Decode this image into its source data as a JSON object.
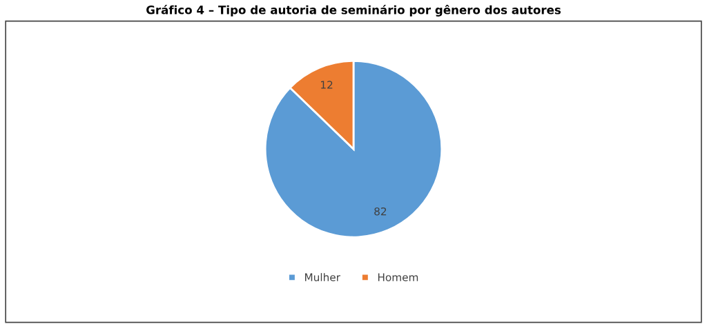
{
  "chart_data": {
    "type": "pie",
    "title": "Gráfico 4 – Tipo de autoria de seminário por gênero dos autores",
    "categories": [
      "Mulher",
      "Homem"
    ],
    "values": [
      82,
      12
    ],
    "colors": [
      "#5b9bd5",
      "#ed7d31"
    ],
    "data_labels": true,
    "legend": "bottom"
  }
}
